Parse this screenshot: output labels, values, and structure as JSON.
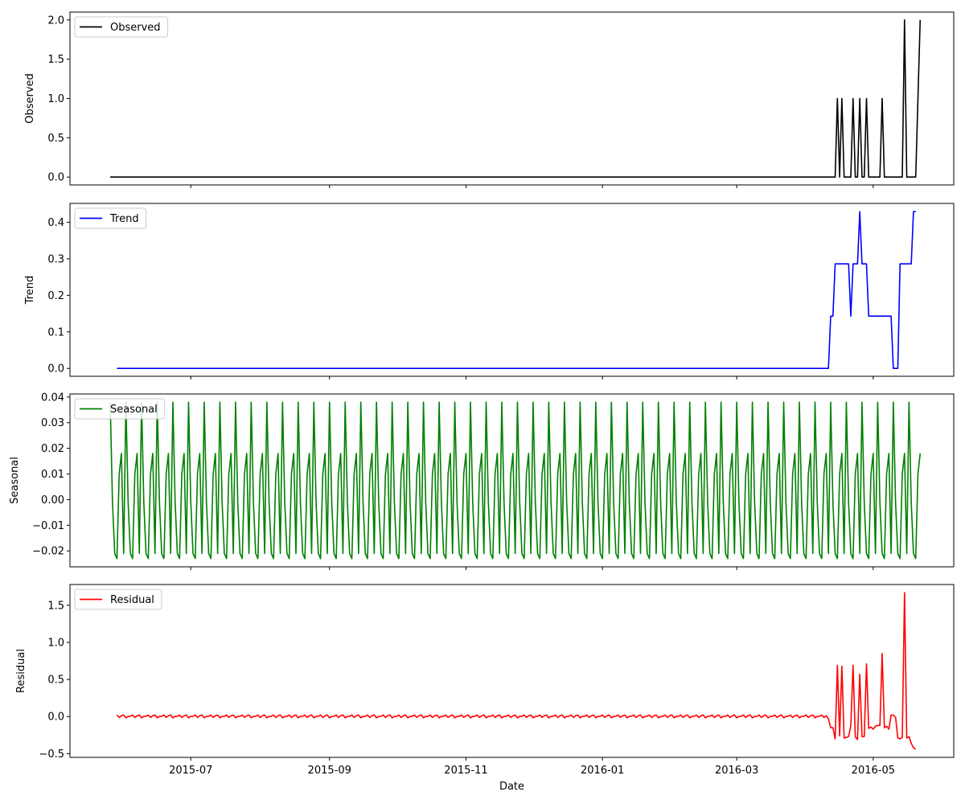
{
  "chart_data": [
    {
      "type": "line",
      "name": "observed",
      "ylabel": "Observed",
      "legend": "Observed",
      "legend_position": "top-left",
      "color": "#000000",
      "ylim": [
        -0.1,
        2.1
      ],
      "yticks": [
        0.0,
        0.5,
        1.0,
        1.5,
        2.0
      ],
      "ytick_labels": [
        "0.0",
        "0.5",
        "1.0",
        "1.5",
        "2.0"
      ],
      "xticks_shown": false,
      "points": [
        [
          "2015-05-26",
          0
        ],
        [
          "2016-04-14",
          0
        ],
        [
          "2016-04-15",
          1
        ],
        [
          "2016-04-16",
          0
        ],
        [
          "2016-04-17",
          1
        ],
        [
          "2016-04-18",
          0
        ],
        [
          "2016-04-21",
          0
        ],
        [
          "2016-04-22",
          1
        ],
        [
          "2016-04-23",
          0
        ],
        [
          "2016-04-24",
          0
        ],
        [
          "2016-04-25",
          1
        ],
        [
          "2016-04-26",
          0
        ],
        [
          "2016-04-27",
          0
        ],
        [
          "2016-04-28",
          1
        ],
        [
          "2016-04-29",
          0
        ],
        [
          "2016-05-04",
          0
        ],
        [
          "2016-05-05",
          1
        ],
        [
          "2016-05-06",
          0
        ],
        [
          "2016-05-14",
          0
        ],
        [
          "2016-05-15",
          2
        ],
        [
          "2016-05-16",
          0
        ],
        [
          "2016-05-20",
          0
        ],
        [
          "2016-05-22",
          2
        ]
      ]
    },
    {
      "type": "line",
      "name": "trend",
      "ylabel": "Trend",
      "legend": "Trend",
      "legend_position": "top-left",
      "color": "#0000ff",
      "ylim": [
        -0.0215,
        0.4515
      ],
      "yticks": [
        0.0,
        0.1,
        0.2,
        0.3,
        0.4
      ],
      "ytick_labels": [
        "0.0",
        "0.1",
        "0.2",
        "0.3",
        "0.4"
      ],
      "xticks_shown": false,
      "points": [
        [
          "2015-05-29",
          0
        ],
        [
          "2016-04-11",
          0
        ],
        [
          "2016-04-12",
          0.143
        ],
        [
          "2016-04-13",
          0.143
        ],
        [
          "2016-04-14",
          0.286
        ],
        [
          "2016-04-20",
          0.286
        ],
        [
          "2016-04-21",
          0.143
        ],
        [
          "2016-04-22",
          0.286
        ],
        [
          "2016-04-24",
          0.286
        ],
        [
          "2016-04-25",
          0.429
        ],
        [
          "2016-04-26",
          0.286
        ],
        [
          "2016-04-28",
          0.286
        ],
        [
          "2016-04-29",
          0.143
        ],
        [
          "2016-05-09",
          0.143
        ],
        [
          "2016-05-10",
          0
        ],
        [
          "2016-05-12",
          0
        ],
        [
          "2016-05-13",
          0.286
        ],
        [
          "2016-05-18",
          0.286
        ],
        [
          "2016-05-19",
          0.429
        ],
        [
          "2016-05-20",
          0.429
        ]
      ]
    },
    {
      "type": "line",
      "name": "seasonal",
      "ylabel": "Seasonal",
      "legend": "Seasonal",
      "legend_position": "top-left",
      "color": "#008000",
      "ylim": [
        -0.0262,
        0.0412
      ],
      "yticks": [
        -0.02,
        -0.01,
        0.0,
        0.01,
        0.02,
        0.03,
        0.04
      ],
      "ytick_labels": [
        "−0.02",
        "−0.01",
        "0.00",
        "0.01",
        "0.02",
        "0.03",
        "0.04"
      ],
      "xticks_shown": false,
      "start": "2015-05-26",
      "end": "2016-05-22",
      "period_days": 7,
      "pattern": [
        0.038,
        -0.001,
        -0.021,
        -0.023,
        0.01,
        0.018,
        -0.021
      ]
    },
    {
      "type": "line",
      "name": "residual",
      "ylabel": "Residual",
      "xlabel": "Date",
      "legend": "Residual",
      "legend_position": "top-left",
      "color": "#ff0000",
      "ylim": [
        -0.55,
        1.78
      ],
      "yticks": [
        -0.5,
        0.0,
        0.5,
        1.0,
        1.5
      ],
      "ytick_labels": [
        "−0.5",
        "0.0",
        "0.5",
        "1.0",
        "1.5"
      ],
      "xticks_shown": true,
      "start": "2015-05-29",
      "baseline_until": "2016-04-10",
      "baseline_pattern": [
        0.021,
        -0.012,
        0.011,
        0.021,
        -0.017,
        0.002,
        0.003
      ],
      "points": [
        [
          "2016-04-11",
          -0.03
        ],
        [
          "2016-04-12",
          -0.15
        ],
        [
          "2016-04-13",
          -0.15
        ],
        [
          "2016-04-14",
          -0.3
        ],
        [
          "2016-04-15",
          0.69
        ],
        [
          "2016-04-16",
          -0.26
        ],
        [
          "2016-04-17",
          0.68
        ],
        [
          "2016-04-18",
          -0.29
        ],
        [
          "2016-04-19",
          -0.28
        ],
        [
          "2016-04-20",
          -0.27
        ],
        [
          "2016-04-21",
          -0.12
        ],
        [
          "2016-04-22",
          0.69
        ],
        [
          "2016-04-23",
          -0.27
        ],
        [
          "2016-04-24",
          -0.31
        ],
        [
          "2016-04-25",
          0.57
        ],
        [
          "2016-04-26",
          -0.27
        ],
        [
          "2016-04-27",
          -0.27
        ],
        [
          "2016-04-28",
          0.71
        ],
        [
          "2016-04-29",
          -0.16
        ],
        [
          "2016-04-30",
          -0.14
        ],
        [
          "2016-05-01",
          -0.17
        ],
        [
          "2016-05-02",
          -0.13
        ],
        [
          "2016-05-03",
          -0.12
        ],
        [
          "2016-05-04",
          -0.12
        ],
        [
          "2016-05-05",
          0.85
        ],
        [
          "2016-05-06",
          -0.15
        ],
        [
          "2016-05-07",
          -0.13
        ],
        [
          "2016-05-08",
          -0.17
        ],
        [
          "2016-05-09",
          0.02
        ],
        [
          "2016-05-10",
          0.02
        ],
        [
          "2016-05-11",
          -0.01
        ],
        [
          "2016-05-12",
          -0.29
        ],
        [
          "2016-05-13",
          -0.3
        ],
        [
          "2016-05-14",
          -0.28
        ],
        [
          "2016-05-15",
          1.67
        ],
        [
          "2016-05-16",
          -0.29
        ],
        [
          "2016-05-17",
          -0.27
        ],
        [
          "2016-05-18",
          -0.36
        ],
        [
          "2016-05-19",
          -0.42
        ],
        [
          "2016-05-20",
          -0.44
        ]
      ]
    }
  ],
  "x_axis": {
    "xlim": [
      "2015-05-08",
      "2016-06-06"
    ],
    "ticks": [
      "2015-07-01",
      "2015-09-01",
      "2015-11-01",
      "2016-01-01",
      "2016-03-01",
      "2016-05-01"
    ],
    "tick_labels": [
      "2015-07",
      "2015-09",
      "2015-11",
      "2016-01",
      "2016-03",
      "2016-05"
    ],
    "label": "Date"
  }
}
